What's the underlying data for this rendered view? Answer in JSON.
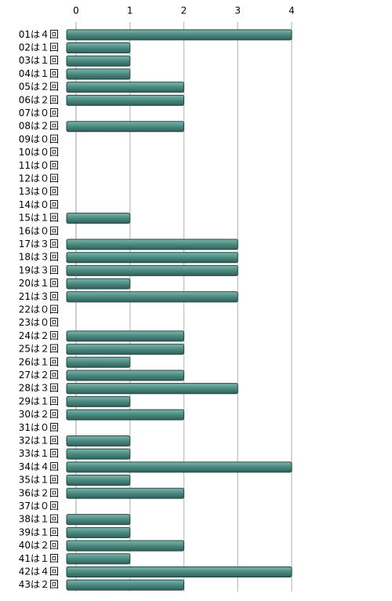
{
  "chart_data": {
    "type": "bar",
    "orientation": "horizontal",
    "categories": [
      "01は４回",
      "02は１回",
      "03は１回",
      "04は１回",
      "05は２回",
      "06は２回",
      "07は０回",
      "08は２回",
      "09は０回",
      "10は０回",
      "11は０回",
      "12は０回",
      "13は０回",
      "14は０回",
      "15は１回",
      "16は０回",
      "17は３回",
      "18は３回",
      "19は３回",
      "20は１回",
      "21は３回",
      "22は０回",
      "23は０回",
      "24は２回",
      "25は２回",
      "26は１回",
      "27は２回",
      "28は３回",
      "29は１回",
      "30は２回",
      "31は０回",
      "32は１回",
      "33は１回",
      "34は４回",
      "35は１回",
      "36は２回",
      "37は０回",
      "38は１回",
      "39は１回",
      "40は２回",
      "41は１回",
      "42は４回",
      "43は２回"
    ],
    "values": [
      4,
      1,
      1,
      1,
      2,
      2,
      0,
      2,
      0,
      0,
      0,
      0,
      0,
      0,
      1,
      0,
      3,
      3,
      3,
      1,
      3,
      0,
      0,
      2,
      2,
      1,
      2,
      3,
      1,
      2,
      0,
      1,
      1,
      4,
      1,
      2,
      0,
      1,
      1,
      2,
      1,
      4,
      2
    ],
    "color": "#4a8a80",
    "xlim": [
      0,
      4
    ],
    "xticks": [
      0,
      1,
      2,
      3,
      4
    ],
    "grid": true
  }
}
